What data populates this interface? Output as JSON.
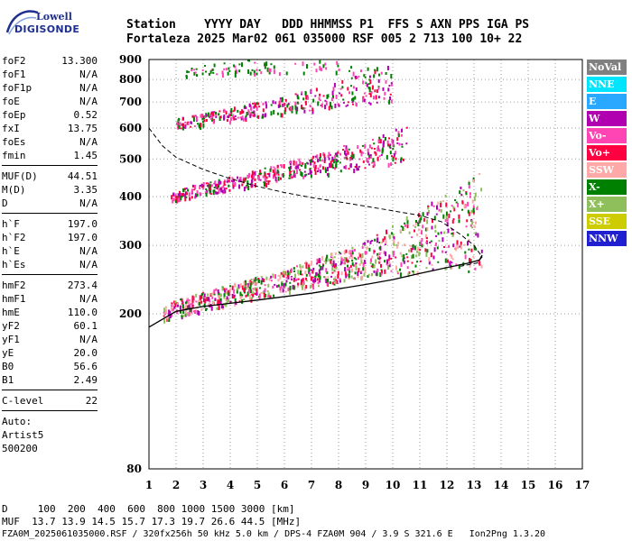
{
  "logo": {
    "line1": "Lowell",
    "line2": "DIGISONDE"
  },
  "header": {
    "line1": "Station    YYYY DAY   DDD HHMMSS P1  FFS S AXN PPS IGA PS",
    "line2": "Fortaleza 2025 Mar02 061 035000 RSF 005 2 713 100 10+ 22"
  },
  "params": {
    "group1": [
      {
        "name": "foF2",
        "value": "13.300"
      },
      {
        "name": "foF1",
        "value": "N/A"
      },
      {
        "name": "foF1p",
        "value": "N/A"
      },
      {
        "name": "foE",
        "value": "N/A"
      },
      {
        "name": "foEp",
        "value": "0.52"
      },
      {
        "name": "fxI",
        "value": "13.75"
      },
      {
        "name": "foEs",
        "value": "N/A"
      },
      {
        "name": "fmin",
        "value": "1.45"
      }
    ],
    "group2": [
      {
        "name": "MUF(D)",
        "value": "44.51"
      },
      {
        "name": "M(D)",
        "value": "3.35"
      },
      {
        "name": "D",
        "value": "N/A"
      }
    ],
    "group3": [
      {
        "name": "h`F",
        "value": "197.0"
      },
      {
        "name": "h`F2",
        "value": "197.0"
      },
      {
        "name": "h`E",
        "value": "N/A"
      },
      {
        "name": "h`Es",
        "value": "N/A"
      }
    ],
    "group4": [
      {
        "name": "hmF2",
        "value": "273.4"
      },
      {
        "name": "hmF1",
        "value": "N/A"
      },
      {
        "name": "hmE",
        "value": "110.0"
      },
      {
        "name": "yF2",
        "value": "60.1"
      },
      {
        "name": "yF1",
        "value": "N/A"
      },
      {
        "name": "yE",
        "value": "20.0"
      },
      {
        "name": "B0",
        "value": "56.6"
      },
      {
        "name": "B1",
        "value": "2.49"
      }
    ],
    "group5": [
      {
        "name": "C-level",
        "value": "22"
      }
    ],
    "auto": [
      "Auto:",
      "Artist5",
      "500200"
    ]
  },
  "legend": [
    {
      "label": "NoVal",
      "color": "#808080"
    },
    {
      "label": "NNE",
      "color": "#00e5ff"
    },
    {
      "label": "E",
      "color": "#2aa7ff"
    },
    {
      "label": "W",
      "color": "#b000b0"
    },
    {
      "label": "Vo-",
      "color": "#ff44b4"
    },
    {
      "label": "Vo+",
      "color": "#ff0040"
    },
    {
      "label": "SSW",
      "color": "#ffa8a8"
    },
    {
      "label": "X-",
      "color": "#008000"
    },
    {
      "label": "X+",
      "color": "#8fbf5a"
    },
    {
      "label": "SSE",
      "color": "#cccc00"
    },
    {
      "label": "NNW",
      "color": "#2020d0"
    }
  ],
  "footer": {
    "line1": "D     100  200  400  600  800 1000 1500 3000 [km]",
    "line2": "MUF  13.7 13.9 14.5 15.7 17.3 19.7 26.6 44.5 [MHz]",
    "line3": "FZA0M_2025061035000.RSF / 320fx256h 50 kHz 5.0 km / DPS-4 FZA0M 904 / 3.9 S 321.6 E   Ion2Png 1.3.20"
  },
  "chart_data": {
    "type": "scatter",
    "xlim": [
      1,
      17
    ],
    "ylim": [
      80,
      900
    ],
    "xticks": [
      "1",
      "2",
      "3",
      "4",
      "5",
      "6",
      "7",
      "8",
      "9",
      "10",
      "11",
      "12",
      "13",
      "14",
      "15",
      "16",
      "17"
    ],
    "yticks": [
      "80",
      "200",
      "300",
      "400",
      "500",
      "600",
      "700",
      "800",
      "900"
    ],
    "y_scale": "log",
    "grid": true,
    "echo_traces": [
      {
        "name": "F2 first hop",
        "x_range": [
          1.5,
          13.3
        ],
        "h_start": 200,
        "h_end": 320,
        "colors": [
          "#ff0040",
          "#b000b0",
          "#ff44b4",
          "#008000",
          "#8fbf5a",
          "#ffa8a8"
        ]
      },
      {
        "name": "F2 second hop",
        "x_range": [
          1.8,
          10.5
        ],
        "h_start": 400,
        "h_end": 530,
        "colors": [
          "#ff44b4",
          "#b000b0",
          "#008000",
          "#ff0040"
        ]
      },
      {
        "name": "F2 third hop",
        "x_range": [
          2.0,
          10.0
        ],
        "h_start": 610,
        "h_end": 760,
        "colors": [
          "#ff44b4",
          "#008000",
          "#ff0040",
          "#b000b0"
        ]
      },
      {
        "name": "F2 fourth hop",
        "x_range": [
          2.2,
          9.5
        ],
        "h_start": 830,
        "h_end": 900,
        "colors": [
          "#ff44b4",
          "#008000"
        ]
      }
    ],
    "virtual_height_curve": [
      [
        1,
        185
      ],
      [
        2,
        203
      ],
      [
        3,
        209
      ],
      [
        5,
        217
      ],
      [
        7,
        226
      ],
      [
        9,
        238
      ],
      [
        10,
        245
      ],
      [
        11,
        254
      ],
      [
        12,
        263
      ],
      [
        12.8,
        270
      ],
      [
        13.2,
        275
      ],
      [
        13.3,
        283
      ]
    ],
    "plasma_profile_curve": [
      [
        1,
        600
      ],
      [
        1.5,
        540
      ],
      [
        2,
        505
      ],
      [
        3,
        470
      ],
      [
        4,
        445
      ],
      [
        5,
        425
      ],
      [
        6,
        410
      ],
      [
        7,
        398
      ],
      [
        8,
        388
      ],
      [
        9,
        378
      ],
      [
        10,
        368
      ],
      [
        11,
        358
      ],
      [
        11.8,
        345
      ],
      [
        12.5,
        320
      ],
      [
        13,
        300
      ],
      [
        13.3,
        280
      ],
      [
        13.1,
        270
      ],
      [
        12.5,
        265
      ]
    ]
  }
}
